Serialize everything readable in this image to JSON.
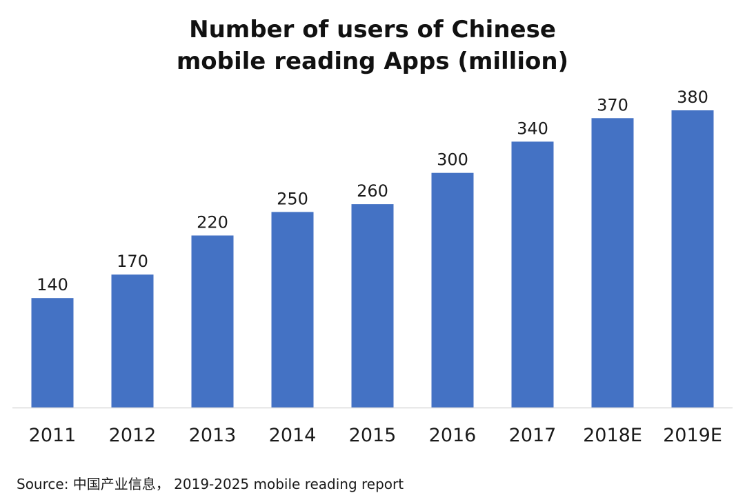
{
  "chart_data": {
    "type": "bar",
    "title_lines": [
      "Number of users of Chinese",
      "mobile reading Apps (million)"
    ],
    "categories": [
      "2011",
      "2012",
      "2013",
      "2014",
      "2015",
      "2016",
      "2017",
      "2018E",
      "2019E"
    ],
    "values": [
      140,
      170,
      220,
      250,
      260,
      300,
      340,
      370,
      380
    ],
    "xlabel": "",
    "ylabel": "",
    "ylim": [
      0,
      380
    ],
    "grid": false,
    "legend": "none",
    "bar_color": "#4472C4",
    "axis_color": "#D9D9D9"
  },
  "source": "Source: 中国产业信息， 2019-2025 mobile reading report"
}
